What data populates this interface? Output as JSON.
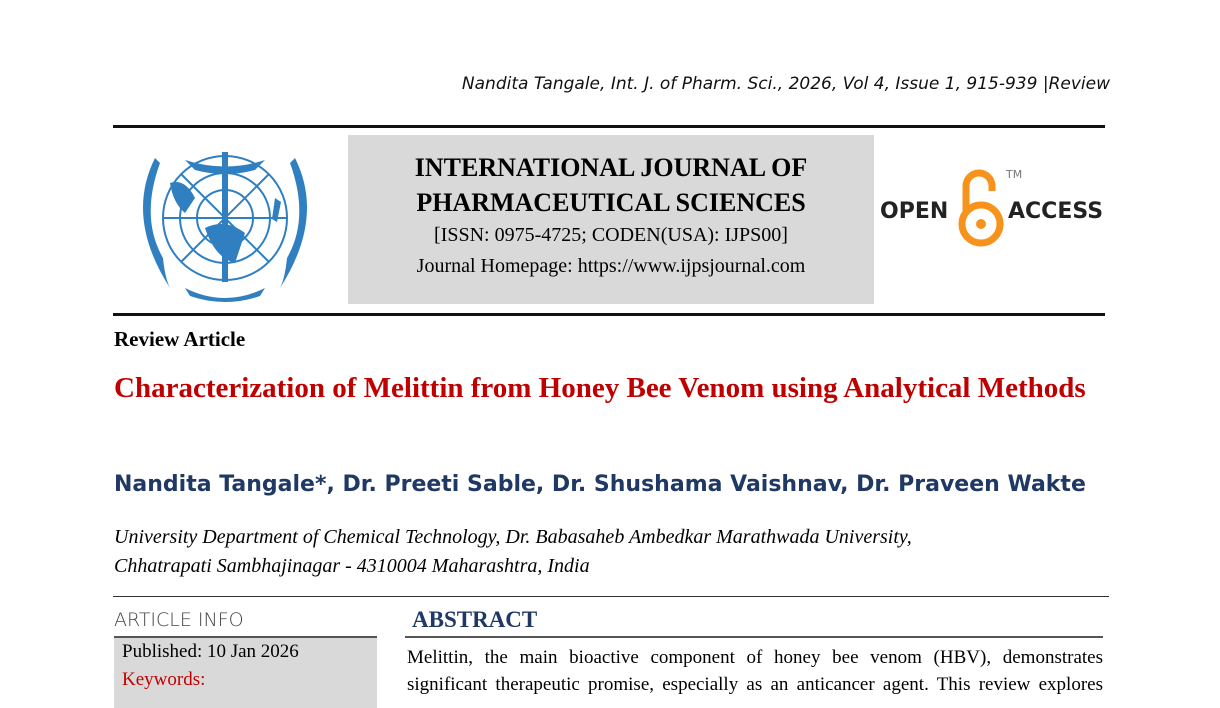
{
  "citation": "Nandita Tangale, Int. J. of Pharm. Sci., 2026, Vol 4, Issue 1, 915-939 |Review",
  "journal": {
    "name_line1": "INTERNATIONAL JOURNAL OF",
    "name_line2": "PHARMACEUTICAL SCIENCES",
    "issn": "[ISSN: 0975-4725; CODEN(USA): IJPS00]",
    "homepage": "Journal Homepage: https://www.ijpsjournal.com"
  },
  "open_access": {
    "left": "OPEN",
    "right": "ACCESS",
    "tm": "TM",
    "color": "#f7931d"
  },
  "logo_color": "#2f7fc1",
  "article_type": "Review Article",
  "title": "Characterization of Melittin from Honey Bee Venom using Analytical Methods",
  "authors": "Nandita Tangale*, Dr. Preeti Sable, Dr. Shushama Vaishnav, Dr. Praveen Wakte",
  "affiliation": {
    "line1": "University Department of Chemical Technology, Dr. Babasaheb Ambedkar Marathwada University,",
    "line2": "Chhatrapati Sambhajinagar - 4310004 Maharashtra, India"
  },
  "article_info": {
    "heading": "ARTICLE INFO",
    "published": "Published:  10 Jan 2026",
    "keywords": "Keywords:"
  },
  "abstract": {
    "heading": "ABSTRACT",
    "line1": "Melittin, the main bioactive component of honey bee venom (HBV), demonstrates",
    "line2": "significant therapeutic promise, especially as an anticancer agent. This review explores"
  }
}
